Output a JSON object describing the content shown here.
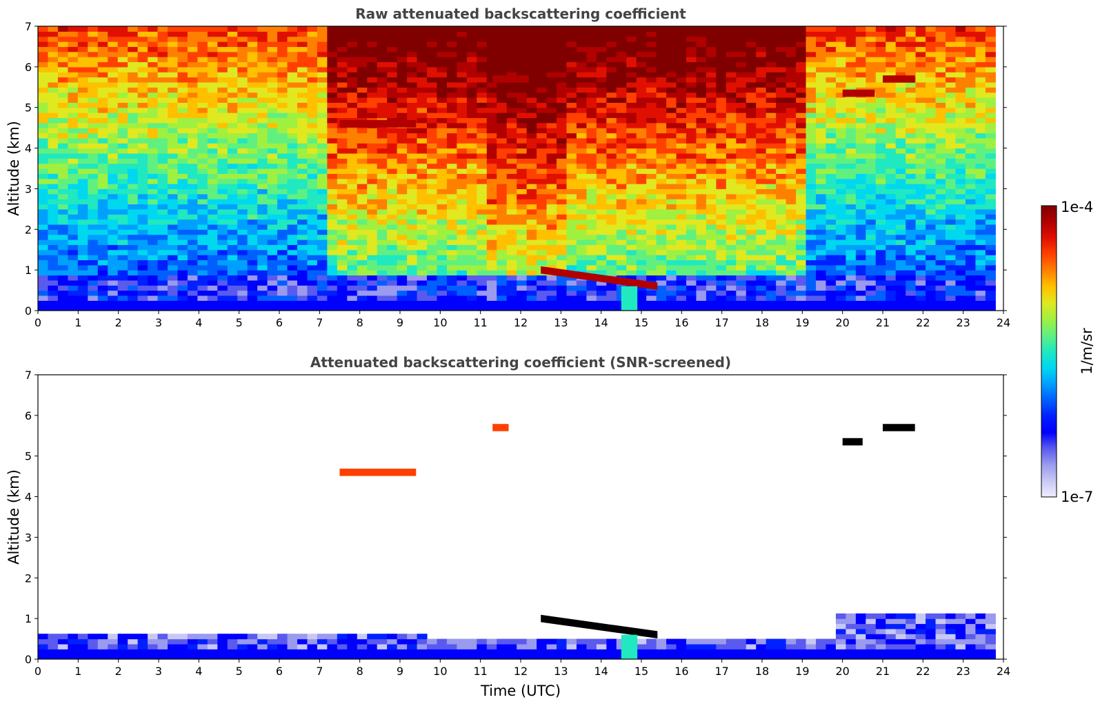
{
  "chart_data": [
    {
      "type": "heatmap",
      "panel": "raw",
      "title": "Raw attenuated backscattering coefficient",
      "xlabel": "",
      "ylabel": "Altitude (km)",
      "xlim": [
        0,
        24
      ],
      "ylim": [
        0,
        7
      ],
      "xticks": [
        "0",
        "1",
        "2",
        "3",
        "4",
        "5",
        "6",
        "7",
        "8",
        "9",
        "10",
        "11",
        "12",
        "13",
        "14",
        "15",
        "16",
        "17",
        "18",
        "19",
        "20",
        "21",
        "22",
        "23",
        "24"
      ],
      "yticks": [
        "0",
        "1",
        "2",
        "3",
        "4",
        "5",
        "6",
        "7"
      ],
      "background": "noisy backscatter field: dark blue near surface (0-0.5 km), blue up to ~2 km, cyan/green/yellow aloft, orange/red aloft between 7-19 UTC",
      "features": [
        {
          "x": [
            7.5,
            9.4
          ],
          "altitude": 4.6,
          "level": 0.92
        },
        {
          "x": [
            11.3,
            12.2
          ],
          "altitude": 5.7,
          "level": 0.92
        },
        {
          "x": [
            12.5,
            15.4
          ],
          "altitude": [
            1.0,
            0.6
          ],
          "level": 0.95
        },
        {
          "x": [
            20.0,
            20.8
          ],
          "altitude": 5.35,
          "level": 0.92
        },
        {
          "x": [
            21.0,
            21.8
          ],
          "altitude": 5.7,
          "level": 0.92
        },
        {
          "x": [
            14.5,
            14.9
          ],
          "altitude": [
            0,
            0.6
          ],
          "level": 0.5
        }
      ]
    },
    {
      "type": "heatmap",
      "panel": "screened",
      "title": "Attenuated backscattering coefficient (SNR-screened)",
      "xlabel": "Time (UTC)",
      "ylabel": "Altitude (km)",
      "xlim": [
        0,
        24
      ],
      "ylim": [
        0,
        7
      ],
      "xticks": [
        "0",
        "1",
        "2",
        "3",
        "4",
        "5",
        "6",
        "7",
        "8",
        "9",
        "10",
        "11",
        "12",
        "13",
        "14",
        "15",
        "16",
        "17",
        "18",
        "19",
        "20",
        "21",
        "22",
        "23",
        "24"
      ],
      "yticks": [
        "0",
        "1",
        "2",
        "3",
        "4",
        "5",
        "6",
        "7"
      ],
      "background": "white (screened) except boundary layer: blue/light blue below ~0.6 km, extending to ~1.1 km after 20 UTC",
      "features": [
        {
          "x": [
            7.5,
            9.4
          ],
          "altitude": 4.6,
          "level": 0.85
        },
        {
          "x": [
            11.3,
            11.7
          ],
          "altitude": 5.7,
          "level": 0.85
        },
        {
          "x": [
            12.5,
            15.4
          ],
          "altitude": [
            1.0,
            0.6
          ],
          "level": 0.0
        },
        {
          "x": [
            20.0,
            20.5
          ],
          "altitude": 5.35,
          "level": 0.0
        },
        {
          "x": [
            21.0,
            21.8
          ],
          "altitude": 5.7,
          "level": 0.0
        },
        {
          "x": [
            14.5,
            14.9
          ],
          "altitude": [
            0,
            0.6
          ],
          "level": 0.5
        }
      ]
    }
  ],
  "colorbar": {
    "label": "1/m/sr",
    "max_label": "1e-4",
    "min_label": "1e-7",
    "scale": "log",
    "colors": [
      "#eeeeff",
      "#c8c8f4",
      "#9a9aee",
      "#5a5aee",
      "#0000ff",
      "#0020ff",
      "#0060ff",
      "#00a0ff",
      "#00d8f0",
      "#20e8c0",
      "#60f080",
      "#a0f040",
      "#e0e820",
      "#ffc000",
      "#ff8000",
      "#ff4000",
      "#e01000",
      "#b00000",
      "#800000"
    ]
  }
}
